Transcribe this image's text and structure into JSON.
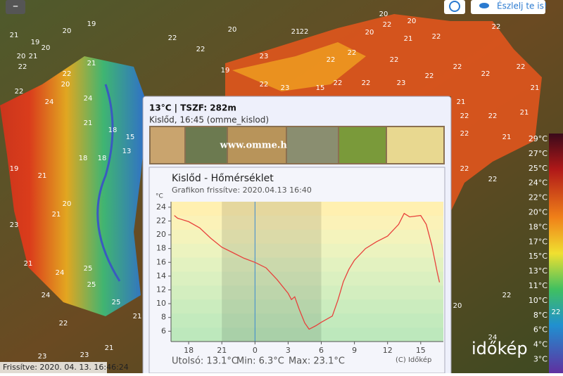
{
  "toolbar": {
    "zoom_out": "–",
    "report_button": "Észlelj te is!"
  },
  "map": {
    "labels": [
      "20",
      "19",
      "21",
      "19",
      "20",
      "20",
      "21",
      "22",
      "22",
      "21",
      "20",
      "22",
      "24",
      "24",
      "21",
      "18",
      "15",
      "13",
      "18",
      "18",
      "19",
      "21",
      "20",
      "21",
      "23",
      "21",
      "24",
      "25",
      "24",
      "25",
      "25",
      "21",
      "22",
      "23",
      "22",
      "22",
      "20",
      "23",
      "21",
      "22",
      "22",
      "20",
      "20",
      "21",
      "22",
      "22",
      "22",
      "22",
      "22",
      "21",
      "22",
      "22",
      "22",
      "21",
      "22",
      "22",
      "22",
      "22",
      "22",
      "23",
      "22",
      "22",
      "22",
      "22",
      "21",
      "20",
      "21",
      "19",
      "15",
      "23",
      "22",
      "24",
      "20",
      "21",
      "23",
      "22"
    ],
    "legend": [
      "29°C",
      "27°C",
      "25°C",
      "24°C",
      "22°C",
      "20°C",
      "18°C",
      "17°C",
      "15°C",
      "13°C",
      "11°C",
      "10°C",
      "8°C",
      "6°C",
      "4°C",
      "3°C"
    ],
    "updated": "Frissítve: 2020. 04. 13. 16:46:24",
    "logo": "időkép"
  },
  "popup": {
    "header": "13°C | TSZF: 282m",
    "subheader": "Kislőd, 16:45 (omme_kislod)",
    "banner": "www.omme.hu",
    "footer": [
      "Utolsó: 13.1°C",
      "Min: 6.3°C",
      "Max: 23.1°C"
    ],
    "copyright": "(C) Időkép"
  },
  "chart_data": {
    "type": "line",
    "title": "Kislőd - Hőmérséklet",
    "subtitle": "Grafikon frissítve: 2020.04.13 16:40",
    "y_label": "°C",
    "color": "#e8413c",
    "x": [
      16.7,
      17,
      18,
      19,
      20,
      21,
      22,
      23,
      24,
      25,
      26,
      27,
      27.3,
      27.6,
      28,
      28.5,
      28.9,
      29.5,
      30,
      31,
      31.5,
      32,
      32.5,
      33,
      34,
      35,
      36,
      37,
      37.5,
      38,
      39,
      39.5,
      40,
      40.5,
      40.7
    ],
    "values": [
      22.8,
      22.4,
      21.9,
      21.0,
      19.5,
      18.2,
      17.4,
      16.6,
      16.0,
      15.2,
      13.5,
      11.5,
      10.6,
      11.0,
      9.2,
      7.2,
      6.3,
      6.8,
      7.3,
      8.2,
      10.5,
      13.2,
      15.0,
      16.3,
      18.0,
      19.0,
      19.8,
      21.5,
      23.1,
      22.6,
      22.8,
      21.5,
      18.5,
      14.5,
      13.1
    ],
    "xlim": [
      16.4,
      41.05
    ],
    "xticks": [
      18,
      21,
      {
        "value": 24,
        "label": "0"
      },
      {
        "value": 27,
        "label": "3"
      },
      {
        "value": 30,
        "label": "6"
      },
      {
        "value": 33,
        "label": "9"
      },
      {
        "value": 36,
        "label": "12"
      },
      {
        "value": 39,
        "label": "15"
      }
    ],
    "ylim": [
      4.5,
      24.8
    ],
    "yticks": [
      6,
      8,
      10,
      12,
      14,
      16,
      18,
      20,
      22,
      24
    ]
  }
}
